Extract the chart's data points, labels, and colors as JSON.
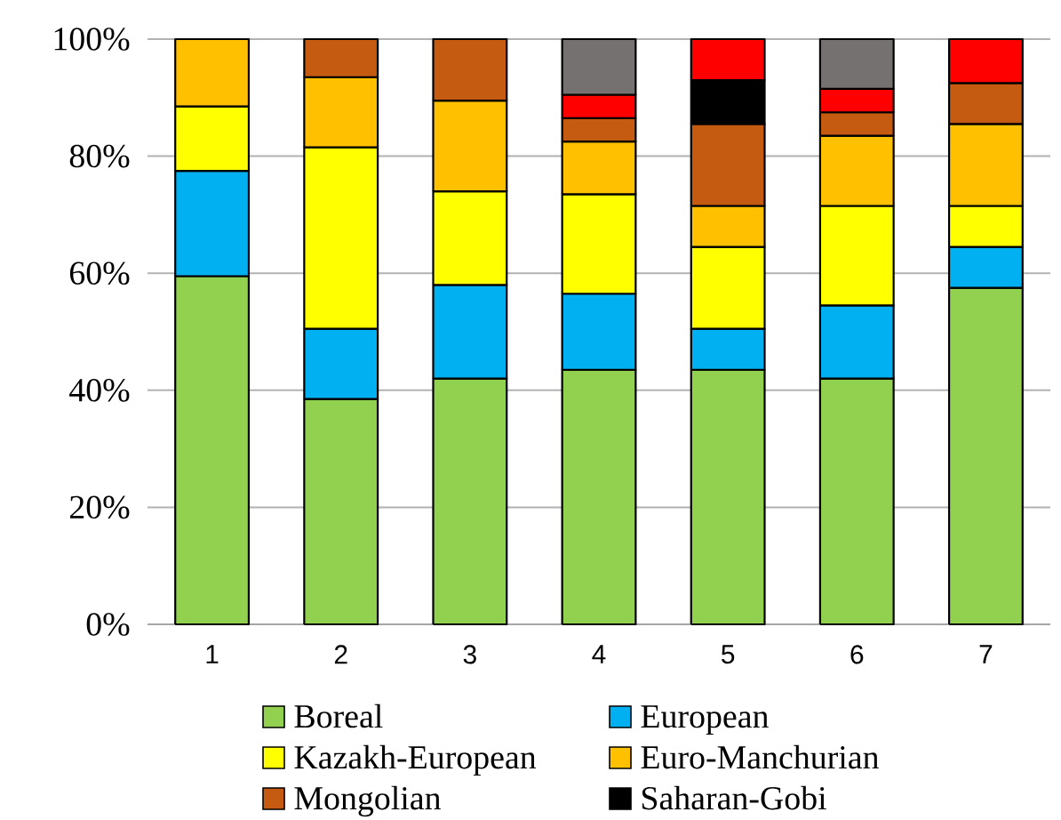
{
  "chart_data": {
    "type": "bar",
    "stacked": true,
    "categories": [
      "1",
      "2",
      "3",
      "4",
      "5",
      "6",
      "7"
    ],
    "ylim": [
      0,
      100
    ],
    "yticks": [
      {
        "value": 0,
        "label": "0%"
      },
      {
        "value": 20,
        "label": "20%"
      },
      {
        "value": 40,
        "label": "40%"
      },
      {
        "value": 60,
        "label": "60%"
      },
      {
        "value": 80,
        "label": "80%"
      },
      {
        "value": 100,
        "label": "100%"
      }
    ],
    "grid": "y",
    "legend": "bottom",
    "series": [
      {
        "name": "Boreal",
        "color": "#92d050",
        "values": [
          59.5,
          38.5,
          42,
          43.5,
          43.5,
          42,
          57.5
        ]
      },
      {
        "name": "European",
        "color": "#00b0f0",
        "values": [
          18,
          12,
          16,
          13,
          7,
          12.5,
          7
        ]
      },
      {
        "name": "Kazakh-European",
        "color": "#ffff00",
        "values": [
          11,
          31,
          16,
          17,
          14,
          17,
          7
        ]
      },
      {
        "name": "Euro-Manchurian",
        "color": "#ffc000",
        "values": [
          11.5,
          12,
          15.5,
          9,
          7,
          12,
          14
        ]
      },
      {
        "name": "Mongolian",
        "color": "#c55a11",
        "values": [
          null,
          6.5,
          10.5,
          4,
          14,
          4,
          7
        ]
      },
      {
        "name": "Saharan-Gobi",
        "color": "#000000",
        "values": [
          null,
          null,
          null,
          null,
          7.5,
          null,
          null
        ]
      },
      {
        "color": "#ff0000",
        "values": [
          null,
          null,
          null,
          4,
          7,
          4,
          7.5
        ]
      },
      {
        "color": "#767171",
        "values": [
          null,
          null,
          null,
          9.5,
          null,
          8.5,
          null
        ]
      }
    ]
  }
}
